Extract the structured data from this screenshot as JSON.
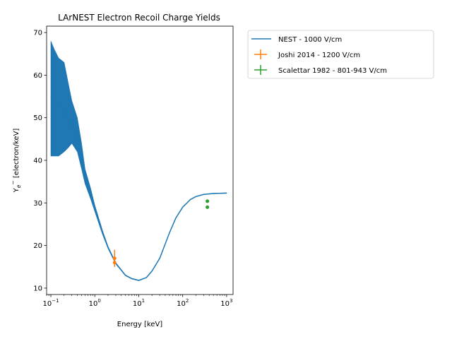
{
  "chart_data": {
    "type": "line",
    "title": "LArNEST Electron Recoil Charge Yields",
    "xlabel": "Energy [keV]",
    "ylabel": "Y_e- [electron/keV]",
    "ylabel_parts": {
      "main": "Y",
      "sub": "e",
      "sup": "−",
      "rest": "  [electron/keV]"
    },
    "xscale": "log",
    "xlim": [
      0.08,
      1400
    ],
    "ylim": [
      8.5,
      71.5
    ],
    "xticks": [
      {
        "value": 0.1,
        "base": "10",
        "exp": "−1"
      },
      {
        "value": 1,
        "base": "10",
        "exp": "0"
      },
      {
        "value": 10,
        "base": "10",
        "exp": "1"
      },
      {
        "value": 100,
        "base": "10",
        "exp": "2"
      },
      {
        "value": 1000,
        "base": "10",
        "exp": "3"
      }
    ],
    "yticks": [
      10,
      20,
      30,
      40,
      50,
      60,
      70
    ],
    "grid": false,
    "legend_position": "outside-right-top",
    "series": [
      {
        "name": "NEST - 1000 V/cm",
        "kind": "band",
        "color": "#1f77b4",
        "x": [
          0.1,
          0.12,
          0.15,
          0.2,
          0.25,
          0.3,
          0.4,
          0.5,
          0.6,
          0.8,
          1,
          1.5,
          2,
          3,
          5,
          7,
          10,
          15,
          20,
          30,
          50,
          70,
          100,
          150,
          200,
          300,
          500,
          1000
        ],
        "y": [
          55,
          54,
          53,
          52,
          50,
          48,
          45,
          40,
          36,
          32,
          28.5,
          23,
          19.5,
          15.8,
          13,
          12.2,
          11.8,
          12.5,
          14,
          17,
          23,
          26.5,
          29,
          30.8,
          31.5,
          32,
          32.2,
          32.3
        ],
        "y_low": [
          41,
          41,
          41,
          42,
          43,
          44,
          42,
          38,
          34.5,
          31,
          28,
          22.6,
          19.3,
          15.7,
          12.9,
          12.15,
          11.75,
          12.45,
          13.95,
          16.95,
          22.95,
          26.45,
          28.95,
          30.75,
          31.45,
          31.95,
          32.15,
          32.25
        ],
        "y_high": [
          68,
          66,
          64,
          63,
          58,
          54,
          50,
          44,
          38,
          33.5,
          29.5,
          23.5,
          19.8,
          16,
          13.1,
          12.3,
          11.9,
          12.55,
          14.05,
          17.05,
          23.05,
          26.55,
          29.05,
          30.85,
          31.55,
          32.05,
          32.25,
          32.35
        ]
      },
      {
        "name": "Joshi 2014 - 1200 V/cm",
        "kind": "errorbar",
        "color": "#ff7f0e",
        "points": [
          {
            "x": 2.82,
            "y": 17.0,
            "yerr_low": 2.0,
            "yerr_high": 2.0
          },
          {
            "x": 2.82,
            "y": 16.0,
            "yerr_low": 1.0,
            "yerr_high": 1.0
          }
        ]
      },
      {
        "name": "Scalettar 1982 - 801-943 V/cm",
        "kind": "errorbar",
        "color": "#2ca02c",
        "points": [
          {
            "x": 364,
            "y": 30.4
          },
          {
            "x": 364,
            "y": 29.0
          }
        ]
      }
    ]
  }
}
